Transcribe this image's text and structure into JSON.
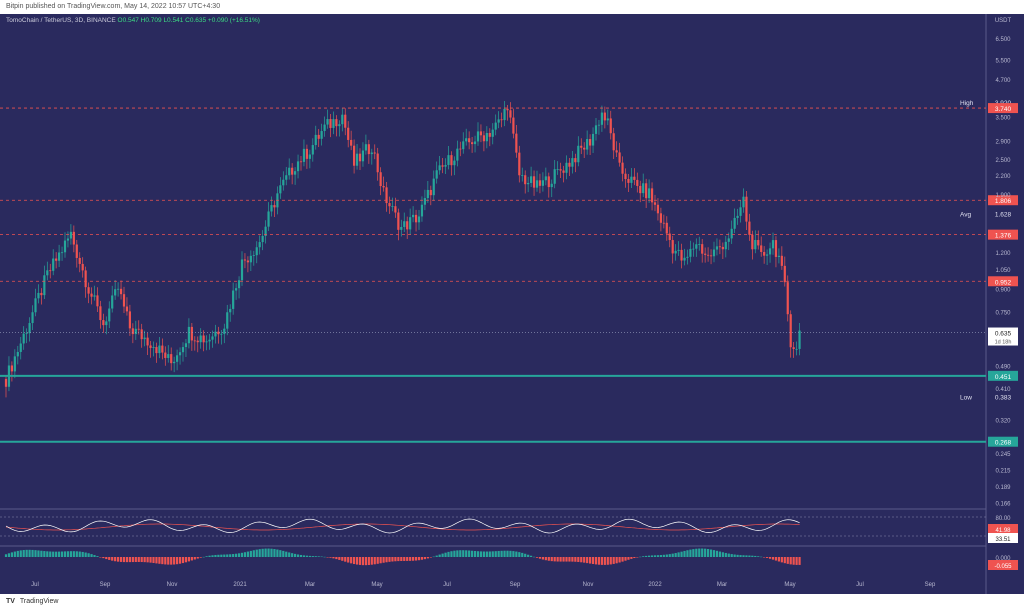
{
  "header": {
    "published": "Bitpin published on TradingView.com, May 14, 2022 10:57 UTC+4:30"
  },
  "legend": {
    "symbol": "TomoChain / TetherUS, 3D, BINANCE",
    "open": "O0.547",
    "high": "H0.709",
    "low": "L0.541",
    "close": "C0.635",
    "change": "+0.090 (+16.51%)"
  },
  "footer": {
    "logo": "TV",
    "brand": "TradingView"
  },
  "colors": {
    "background": "#2a2a5e",
    "up": "#26a69a",
    "down": "#ef5350",
    "support": "#26a69a",
    "resistance": "#ef5350"
  },
  "chart_data": {
    "type": "candlestick",
    "log_scale": true,
    "ylim": [
      0.16,
      7.5
    ],
    "currency": "USDT",
    "y_ticks": [
      "6.500",
      "5.500",
      "4.700",
      "3.500",
      "2.900",
      "2.500",
      "2.200",
      "1.900",
      "1.200",
      "1.050",
      "0.900",
      "0.750",
      "0.490",
      "0.410",
      "0.320",
      "0.245",
      "0.215",
      "0.189",
      "0.166"
    ],
    "x_ticks": [
      "Jul",
      "Sep",
      "Nov",
      "2021",
      "Mar",
      "May",
      "Jul",
      "Sep",
      "Nov",
      "2022",
      "Mar",
      "May",
      "Jul",
      "Sep"
    ],
    "anchors": [
      [
        0,
        0.44
      ],
      [
        6,
        0.62
      ],
      [
        14,
        1.0
      ],
      [
        22,
        1.38
      ],
      [
        28,
        0.9
      ],
      [
        33,
        0.68
      ],
      [
        38,
        0.9
      ],
      [
        42,
        0.66
      ],
      [
        50,
        0.58
      ],
      [
        56,
        0.5
      ],
      [
        62,
        0.64
      ],
      [
        68,
        0.6
      ],
      [
        74,
        0.68
      ],
      [
        80,
        1.1
      ],
      [
        86,
        1.3
      ],
      [
        92,
        1.9
      ],
      [
        98,
        2.4
      ],
      [
        103,
        2.7
      ],
      [
        108,
        3.2
      ],
      [
        114,
        3.55
      ],
      [
        118,
        2.4
      ],
      [
        124,
        2.8
      ],
      [
        128,
        1.9
      ],
      [
        134,
        1.45
      ],
      [
        140,
        1.6
      ],
      [
        146,
        2.2
      ],
      [
        152,
        2.6
      ],
      [
        158,
        2.9
      ],
      [
        164,
        3.1
      ],
      [
        168,
        3.4
      ],
      [
        170,
        3.9
      ],
      [
        174,
        2.2
      ],
      [
        180,
        2.0
      ],
      [
        186,
        2.2
      ],
      [
        192,
        2.5
      ],
      [
        198,
        2.9
      ],
      [
        202,
        3.6
      ],
      [
        204,
        3.3
      ],
      [
        208,
        2.3
      ],
      [
        214,
        2.0
      ],
      [
        218,
        1.9
      ],
      [
        222,
        1.55
      ],
      [
        226,
        1.25
      ],
      [
        230,
        1.1
      ],
      [
        234,
        1.3
      ],
      [
        238,
        1.15
      ],
      [
        242,
        1.25
      ],
      [
        246,
        1.4
      ],
      [
        250,
        1.8
      ],
      [
        252,
        1.35
      ],
      [
        256,
        1.15
      ],
      [
        260,
        1.3
      ],
      [
        262,
        1.15
      ],
      [
        264,
        0.9
      ],
      [
        266,
        0.6
      ],
      [
        268,
        0.55
      ],
      [
        269,
        0.635
      ]
    ],
    "levels": [
      {
        "label": "High",
        "value": "3.920"
      },
      {
        "label": "",
        "value": "3.740",
        "kind": "resistance"
      },
      {
        "label": "",
        "value": "1.806",
        "kind": "resistance"
      },
      {
        "label": "Avg",
        "value": "1.628"
      },
      {
        "label": "",
        "value": "1.376",
        "kind": "resistance"
      },
      {
        "label": "",
        "value": "0.952",
        "kind": "resistance"
      },
      {
        "label": "",
        "value": "0.635",
        "kind": "last",
        "note": "1d 18h"
      },
      {
        "label": "",
        "value": "0.451",
        "kind": "support"
      },
      {
        "label": "Low",
        "value": "0.383"
      },
      {
        "label": "",
        "value": "0.268",
        "kind": "support"
      }
    ],
    "rsi": {
      "ticks": [
        "80.00",
        "41.98",
        "33.51"
      ]
    },
    "macd": {
      "ticks": [
        "0.000",
        "-0.055"
      ]
    }
  }
}
